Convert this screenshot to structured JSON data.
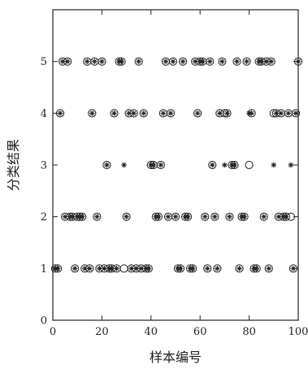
{
  "chart_data": {
    "type": "scatter",
    "xlabel": "样本编号",
    "ylabel": "分类结果",
    "xlim": [
      0,
      100
    ],
    "ylim": [
      0,
      6
    ],
    "xticks": [
      0,
      20,
      40,
      60,
      80,
      100
    ],
    "yticks": [
      0,
      1,
      2,
      3,
      4,
      5
    ],
    "grid": false,
    "legend": "none",
    "colors": {
      "marker": "#222222",
      "axis": "#222222"
    },
    "series": [
      {
        "marker": "circle",
        "points": [
          [
            1,
            1
          ],
          [
            2,
            1
          ],
          [
            3,
            4
          ],
          [
            4,
            5
          ],
          [
            5,
            2
          ],
          [
            6,
            5
          ],
          [
            7,
            2
          ],
          [
            8,
            2
          ],
          [
            9,
            1
          ],
          [
            10,
            2
          ],
          [
            11,
            2
          ],
          [
            12,
            2
          ],
          [
            13,
            1
          ],
          [
            14,
            5
          ],
          [
            15,
            1
          ],
          [
            16,
            4
          ],
          [
            17,
            5
          ],
          [
            18,
            2
          ],
          [
            19,
            1
          ],
          [
            20,
            5
          ],
          [
            21,
            1
          ],
          [
            22,
            3
          ],
          [
            23,
            1
          ],
          [
            24,
            1
          ],
          [
            25,
            4
          ],
          [
            26,
            1
          ],
          [
            27,
            5
          ],
          [
            28,
            5
          ],
          [
            29,
            1
          ],
          [
            30,
            2
          ],
          [
            31,
            4
          ],
          [
            32,
            1
          ],
          [
            33,
            4
          ],
          [
            34,
            1
          ],
          [
            35,
            5
          ],
          [
            36,
            1
          ],
          [
            37,
            4
          ],
          [
            38,
            1
          ],
          [
            39,
            1
          ],
          [
            40,
            3
          ],
          [
            41,
            3
          ],
          [
            42,
            2
          ],
          [
            43,
            2
          ],
          [
            44,
            3
          ],
          [
            45,
            4
          ],
          [
            46,
            5
          ],
          [
            47,
            2
          ],
          [
            48,
            4
          ],
          [
            49,
            5
          ],
          [
            50,
            2
          ],
          [
            51,
            1
          ],
          [
            52,
            1
          ],
          [
            53,
            5
          ],
          [
            54,
            2
          ],
          [
            55,
            2
          ],
          [
            56,
            1
          ],
          [
            57,
            1
          ],
          [
            58,
            5
          ],
          [
            59,
            4
          ],
          [
            60,
            5
          ],
          [
            61,
            5
          ],
          [
            62,
            2
          ],
          [
            63,
            1
          ],
          [
            64,
            5
          ],
          [
            65,
            3
          ],
          [
            66,
            2
          ],
          [
            67,
            1
          ],
          [
            68,
            4
          ],
          [
            69,
            5
          ],
          [
            70,
            4
          ],
          [
            71,
            4
          ],
          [
            72,
            2
          ],
          [
            73,
            3
          ],
          [
            74,
            3
          ],
          [
            75,
            5
          ],
          [
            76,
            1
          ],
          [
            77,
            2
          ],
          [
            78,
            2
          ],
          [
            79,
            5
          ],
          [
            80,
            3
          ],
          [
            81,
            4
          ],
          [
            82,
            1
          ],
          [
            83,
            1
          ],
          [
            84,
            5
          ],
          [
            85,
            5
          ],
          [
            86,
            2
          ],
          [
            87,
            5
          ],
          [
            88,
            1
          ],
          [
            89,
            5
          ],
          [
            90,
            4
          ],
          [
            91,
            4
          ],
          [
            92,
            2
          ],
          [
            93,
            4
          ],
          [
            94,
            2
          ],
          [
            95,
            2
          ],
          [
            96,
            4
          ],
          [
            97,
            2
          ],
          [
            98,
            1
          ],
          [
            99,
            4
          ],
          [
            100,
            5
          ]
        ]
      },
      {
        "marker": "star",
        "points": [
          [
            1,
            1
          ],
          [
            2,
            1
          ],
          [
            3,
            4
          ],
          [
            4,
            5
          ],
          [
            5,
            2
          ],
          [
            6,
            5
          ],
          [
            7,
            2
          ],
          [
            8,
            2
          ],
          [
            9,
            1
          ],
          [
            10,
            2
          ],
          [
            11,
            2
          ],
          [
            12,
            2
          ],
          [
            13,
            1
          ],
          [
            14,
            5
          ],
          [
            15,
            1
          ],
          [
            16,
            4
          ],
          [
            17,
            5
          ],
          [
            18,
            2
          ],
          [
            19,
            1
          ],
          [
            20,
            5
          ],
          [
            21,
            1
          ],
          [
            22,
            3
          ],
          [
            23,
            1
          ],
          [
            24,
            1
          ],
          [
            25,
            4
          ],
          [
            26,
            1
          ],
          [
            27,
            5
          ],
          [
            28,
            5
          ],
          [
            29,
            3
          ],
          [
            30,
            2
          ],
          [
            31,
            4
          ],
          [
            32,
            1
          ],
          [
            33,
            4
          ],
          [
            34,
            1
          ],
          [
            35,
            5
          ],
          [
            36,
            1
          ],
          [
            37,
            4
          ],
          [
            38,
            1
          ],
          [
            39,
            1
          ],
          [
            40,
            3
          ],
          [
            41,
            3
          ],
          [
            42,
            2
          ],
          [
            43,
            2
          ],
          [
            44,
            3
          ],
          [
            45,
            4
          ],
          [
            46,
            5
          ],
          [
            47,
            2
          ],
          [
            48,
            4
          ],
          [
            49,
            5
          ],
          [
            50,
            2
          ],
          [
            51,
            1
          ],
          [
            52,
            1
          ],
          [
            53,
            5
          ],
          [
            54,
            2
          ],
          [
            55,
            2
          ],
          [
            56,
            1
          ],
          [
            57,
            1
          ],
          [
            58,
            5
          ],
          [
            59,
            4
          ],
          [
            60,
            5
          ],
          [
            61,
            5
          ],
          [
            62,
            2
          ],
          [
            63,
            1
          ],
          [
            64,
            5
          ],
          [
            65,
            3
          ],
          [
            66,
            2
          ],
          [
            67,
            1
          ],
          [
            68,
            4
          ],
          [
            69,
            5
          ],
          [
            70,
            3
          ],
          [
            71,
            4
          ],
          [
            72,
            2
          ],
          [
            73,
            3
          ],
          [
            74,
            3
          ],
          [
            75,
            5
          ],
          [
            76,
            1
          ],
          [
            77,
            2
          ],
          [
            78,
            2
          ],
          [
            79,
            5
          ],
          [
            80,
            4
          ],
          [
            81,
            4
          ],
          [
            82,
            1
          ],
          [
            83,
            1
          ],
          [
            84,
            5
          ],
          [
            85,
            5
          ],
          [
            86,
            2
          ],
          [
            87,
            5
          ],
          [
            88,
            1
          ],
          [
            89,
            5
          ],
          [
            90,
            3
          ],
          [
            91,
            4
          ],
          [
            92,
            2
          ],
          [
            93,
            4
          ],
          [
            94,
            2
          ],
          [
            95,
            2
          ],
          [
            96,
            4
          ],
          [
            97,
            3
          ],
          [
            98,
            1
          ],
          [
            99,
            4
          ],
          [
            100,
            5
          ]
        ]
      }
    ]
  }
}
